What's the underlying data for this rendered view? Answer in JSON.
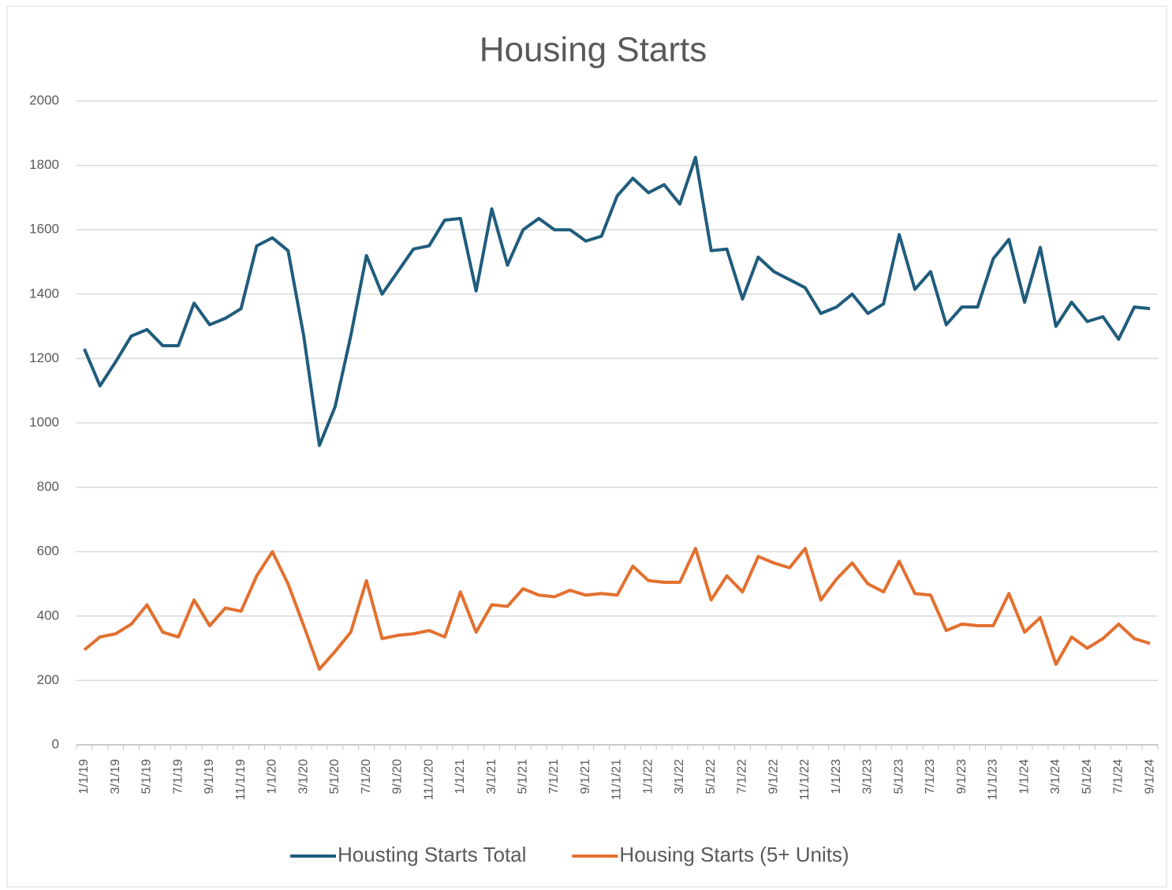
{
  "chart_data": {
    "type": "line",
    "title": "Housing Starts",
    "categories": [
      "1/1/19",
      null,
      "3/1/19",
      null,
      "5/1/19",
      null,
      "7/1/19",
      null,
      "9/1/19",
      null,
      "11/1/19",
      null,
      "1/1/20",
      null,
      "3/1/20",
      null,
      "5/1/20",
      null,
      "7/1/20",
      null,
      "9/1/20",
      null,
      "11/1/20",
      null,
      "1/1/21",
      null,
      "3/1/21",
      null,
      "5/1/21",
      null,
      "7/1/21",
      null,
      "9/1/21",
      null,
      "11/1/21",
      null,
      "1/1/22",
      null,
      "3/1/22",
      null,
      "5/1/22",
      null,
      "7/1/22",
      null,
      "9/1/22",
      null,
      "11/1/22",
      null,
      "1/1/23",
      null,
      "3/1/23",
      null,
      "5/1/23",
      null,
      "7/1/23",
      null,
      "9/1/23",
      null,
      "11/1/23",
      null,
      "1/1/24",
      null,
      "3/1/24",
      null,
      "5/1/24",
      null,
      "7/1/24",
      null,
      "9/1/24"
    ],
    "series": [
      {
        "name": "Housting Starts Total",
        "color": "#1f5c7d",
        "values": [
          1230,
          1115,
          1190,
          1270,
          1290,
          1240,
          1240,
          1372,
          1305,
          1325,
          1355,
          1550,
          1575,
          1535,
          1270,
          930,
          1050,
          1270,
          1520,
          1400,
          1470,
          1540,
          1550,
          1630,
          1635,
          1410,
          1665,
          1490,
          1600,
          1635,
          1600,
          1600,
          1565,
          1580,
          1705,
          1760,
          1715,
          1740,
          1680,
          1825,
          1535,
          1540,
          1385,
          1515,
          1470,
          1445,
          1420,
          1340,
          1360,
          1400,
          1340,
          1370,
          1585,
          1415,
          1470,
          1305,
          1360,
          1360,
          1510,
          1570,
          1375,
          1545,
          1300,
          1375,
          1315,
          1330,
          1260,
          1360,
          1355
        ]
      },
      {
        "name": "Housing Starts (5+ Units)",
        "color": "#e3702f",
        "values": [
          295,
          335,
          345,
          375,
          435,
          350,
          335,
          450,
          370,
          425,
          415,
          525,
          600,
          500,
          370,
          235,
          290,
          350,
          510,
          330,
          340,
          345,
          355,
          335,
          475,
          350,
          435,
          430,
          485,
          465,
          460,
          480,
          465,
          470,
          465,
          555,
          510,
          505,
          505,
          610,
          450,
          525,
          475,
          585,
          565,
          550,
          610,
          450,
          515,
          565,
          500,
          475,
          570,
          470,
          465,
          355,
          375,
          370,
          370,
          470,
          350,
          395,
          250,
          335,
          300,
          330,
          375,
          330,
          315
        ]
      }
    ],
    "ylim": [
      0,
      2000
    ],
    "yticks": [
      0,
      200,
      400,
      600,
      800,
      1000,
      1200,
      1400,
      1600,
      1800,
      2000
    ],
    "grid": true,
    "legend": "bottom"
  }
}
